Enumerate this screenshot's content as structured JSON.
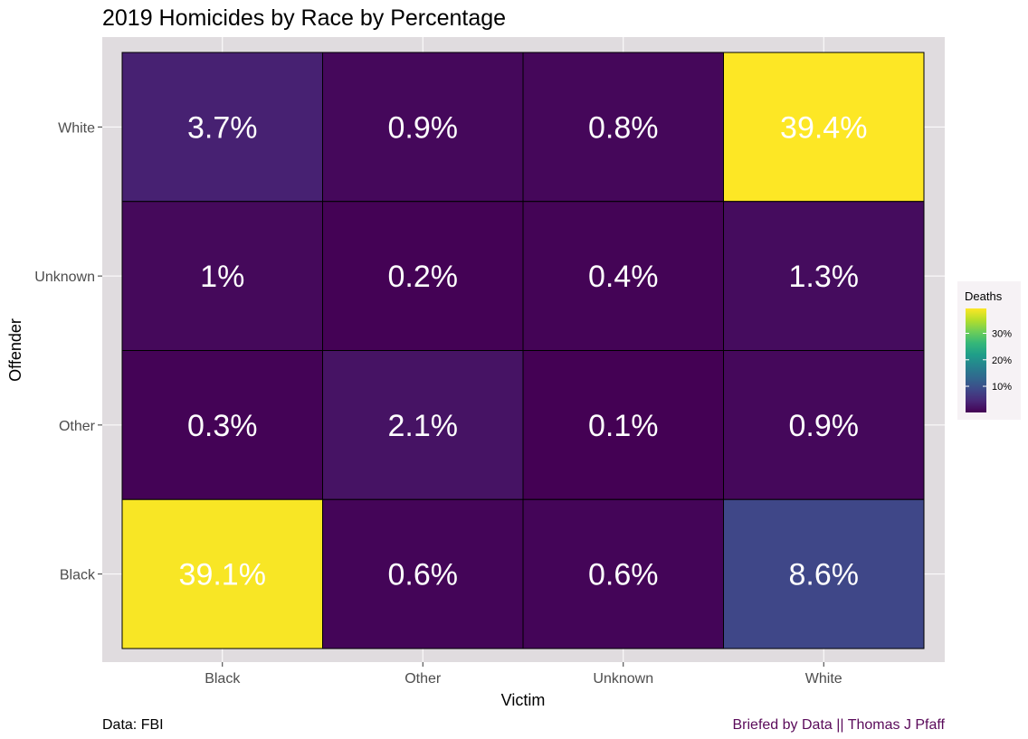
{
  "chart_data": {
    "type": "heatmap",
    "title": "2019 Homicides by Race by Percentage",
    "xlabel": "Victim",
    "ylabel": "Offender",
    "x_categories": [
      "Black",
      "Other",
      "Unknown",
      "White"
    ],
    "y_categories": [
      "Black",
      "Other",
      "Unknown",
      "White"
    ],
    "cells": [
      {
        "victim": "Black",
        "offender": "White",
        "value": 3.7,
        "label": "3.7%"
      },
      {
        "victim": "Other",
        "offender": "White",
        "value": 0.9,
        "label": "0.9%"
      },
      {
        "victim": "Unknown",
        "offender": "White",
        "value": 0.8,
        "label": "0.8%"
      },
      {
        "victim": "White",
        "offender": "White",
        "value": 39.4,
        "label": "39.4%"
      },
      {
        "victim": "Black",
        "offender": "Unknown",
        "value": 1.0,
        "label": "1%"
      },
      {
        "victim": "Other",
        "offender": "Unknown",
        "value": 0.2,
        "label": "0.2%"
      },
      {
        "victim": "Unknown",
        "offender": "Unknown",
        "value": 0.4,
        "label": "0.4%"
      },
      {
        "victim": "White",
        "offender": "Unknown",
        "value": 1.3,
        "label": "1.3%"
      },
      {
        "victim": "Black",
        "offender": "Other",
        "value": 0.3,
        "label": "0.3%"
      },
      {
        "victim": "Other",
        "offender": "Other",
        "value": 2.1,
        "label": "2.1%"
      },
      {
        "victim": "Unknown",
        "offender": "Other",
        "value": 0.1,
        "label": "0.1%"
      },
      {
        "victim": "White",
        "offender": "Other",
        "value": 0.9,
        "label": "0.9%"
      },
      {
        "victim": "Black",
        "offender": "Black",
        "value": 39.1,
        "label": "39.1%"
      },
      {
        "victim": "Other",
        "offender": "Black",
        "value": 0.6,
        "label": "0.6%"
      },
      {
        "victim": "Unknown",
        "offender": "Black",
        "value": 0.6,
        "label": "0.6%"
      },
      {
        "victim": "White",
        "offender": "Black",
        "value": 8.6,
        "label": "8.6%"
      }
    ],
    "color_scale": {
      "name": "viridis",
      "min": 0.1,
      "max": 39.4,
      "stops": [
        "#440154",
        "#482878",
        "#3e4989",
        "#31688e",
        "#26828e",
        "#1f9e89",
        "#35b779",
        "#6ece58",
        "#b5de2b",
        "#fde725"
      ]
    },
    "legend": {
      "title": "Deaths",
      "ticks": [
        {
          "value": 10,
          "label": "10%"
        },
        {
          "value": 20,
          "label": "20%"
        },
        {
          "value": 30,
          "label": "30%"
        }
      ],
      "position": "right"
    },
    "grid": true,
    "panel_background": "#e0dcdf"
  },
  "caption": {
    "left": "Data: FBI",
    "right": "Briefed by Data || Thomas J Pfaff",
    "right_color": "#5a0a5a"
  }
}
